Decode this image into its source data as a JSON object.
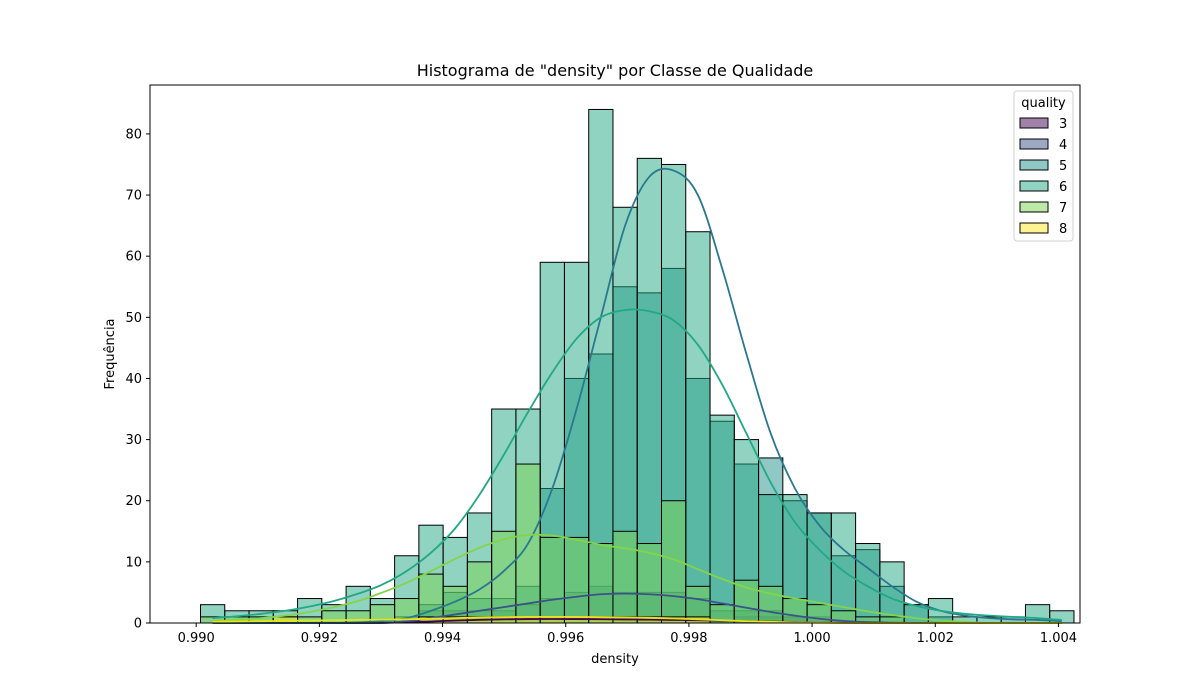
{
  "chart_data": {
    "type": "bar",
    "title": "Histograma de \"density\" por Classe de Qualidade",
    "xlabel": "density",
    "ylabel": "Frequência",
    "xlim": [
      0.98925,
      1.00435
    ],
    "ylim": [
      0,
      88
    ],
    "x_ticks": [
      "0.990",
      "0.992",
      "0.994",
      "0.996",
      "0.998",
      "1.000",
      "1.002",
      "1.004"
    ],
    "x_tick_values": [
      0.99,
      0.992,
      0.994,
      0.996,
      0.998,
      1.0,
      1.002,
      1.004
    ],
    "y_ticks": [
      "0",
      "10",
      "20",
      "30",
      "40",
      "50",
      "60",
      "70",
      "80"
    ],
    "y_tick_values": [
      0,
      10,
      20,
      30,
      40,
      50,
      60,
      70,
      80
    ],
    "bins": {
      "start": 0.99007,
      "width": 0.00039395,
      "count": 36
    },
    "legend": {
      "title": "quality",
      "placement": "top-right"
    },
    "series": [
      {
        "name": "3",
        "color": "#440154",
        "values": [
          0,
          0,
          0,
          0,
          0,
          0,
          0,
          0,
          0,
          0,
          0,
          0,
          0,
          1,
          1,
          0,
          0,
          1,
          1,
          1,
          1,
          0,
          1,
          1,
          1,
          0,
          0,
          0,
          0,
          0,
          0,
          0,
          0,
          0,
          0,
          0
        ],
        "kde": [
          0,
          0,
          0,
          0,
          0,
          0,
          0,
          0.02,
          0.1,
          0.25,
          0.4,
          0.52,
          0.6,
          0.64,
          0.65,
          0.64,
          0.62,
          0.58,
          0.55,
          0.5,
          0.45,
          0.38,
          0.3,
          0.22,
          0.15,
          0.08,
          0.03,
          0,
          0,
          0,
          0,
          0,
          0,
          0,
          0,
          0
        ]
      },
      {
        "name": "4",
        "color": "#3b528b",
        "values": [
          0,
          0,
          0,
          0,
          0,
          0,
          0,
          0,
          0,
          2,
          2,
          2,
          2,
          3,
          4,
          5,
          6,
          5,
          5,
          5,
          4,
          2,
          2,
          2,
          1,
          1,
          0,
          0,
          0,
          0,
          0,
          0,
          0,
          0,
          0,
          0
        ],
        "kde": [
          0,
          0,
          0,
          0,
          0,
          0,
          0,
          0,
          0.3,
          0.8,
          1.4,
          2.0,
          2.6,
          3.2,
          3.8,
          4.3,
          4.7,
          4.8,
          4.7,
          4.4,
          3.9,
          3.2,
          2.5,
          1.8,
          1.2,
          0.7,
          0.35,
          0.15,
          0.05,
          0,
          0,
          0,
          0,
          0,
          0,
          0
        ]
      },
      {
        "name": "5",
        "color": "#21918c",
        "values": [
          0,
          0,
          0,
          0,
          0,
          0,
          0,
          0,
          1,
          3,
          5,
          4,
          4,
          6,
          22,
          40,
          44,
          55,
          54,
          58,
          40,
          33,
          26,
          27,
          20,
          18,
          11,
          12,
          6,
          3,
          1,
          0,
          0,
          1,
          0,
          0
        ],
        "kde": [
          0,
          0,
          0,
          0,
          0,
          0,
          0.1,
          0.3,
          0.8,
          2,
          3.5,
          5.5,
          8.5,
          13,
          22,
          35,
          50,
          65,
          73,
          74,
          70,
          58,
          44,
          31,
          22,
          16,
          12,
          9,
          6,
          3.5,
          2,
          1.2,
          0.8,
          0.6,
          0.5,
          0.3
        ],
        "kde_color": "#2a788e"
      },
      {
        "name": "6",
        "color": "#21a883",
        "values": [
          3,
          2,
          2,
          2,
          4,
          3,
          6,
          4,
          11,
          16,
          14,
          18,
          35,
          35,
          59,
          59,
          84,
          68,
          76,
          75,
          64,
          34,
          30,
          21,
          21,
          18,
          18,
          13,
          10,
          3,
          4,
          1,
          1,
          0,
          3,
          2
        ],
        "kde": [
          0.8,
          1.1,
          1.5,
          2,
          2.7,
          3.6,
          4.8,
          6.3,
          8.5,
          11.5,
          15.5,
          21,
          27.5,
          34.5,
          41,
          46.5,
          50,
          51.2,
          51,
          49.5,
          45.5,
          39,
          31,
          23,
          16.5,
          12,
          8.5,
          6,
          4,
          2.8,
          2,
          1.5,
          1.2,
          1,
          0.8,
          0.5
        ],
        "kde_color": "#22a884"
      },
      {
        "name": "7",
        "color": "#7ad151",
        "values": [
          1,
          1,
          1,
          1,
          1,
          2,
          2,
          3,
          4,
          8,
          6,
          10,
          15,
          26,
          14,
          14,
          13,
          15,
          13,
          20,
          6,
          3,
          7,
          6,
          4,
          3,
          2,
          1,
          1,
          0,
          0,
          0,
          0,
          0,
          0,
          0
        ],
        "kde": [
          0.3,
          0.5,
          0.8,
          1.2,
          1.8,
          2.6,
          3.6,
          5,
          6.6,
          8.5,
          10.5,
          12.3,
          13.7,
          14.4,
          14.3,
          13.6,
          12.8,
          12.2,
          11.5,
          10.4,
          8.8,
          7.2,
          5.8,
          4.8,
          4,
          3.3,
          2.6,
          1.9,
          1.3,
          0.8,
          0.4,
          0.2,
          0,
          0,
          0,
          0
        ],
        "kde_color": "#84d44b"
      },
      {
        "name": "8",
        "color": "#fde725",
        "values": [
          0,
          0,
          0,
          1,
          0,
          0,
          0,
          0,
          0,
          1,
          1,
          1,
          1,
          1,
          1,
          1,
          1,
          1,
          1,
          1,
          1,
          0,
          0,
          0,
          0,
          0,
          0,
          0,
          0,
          0,
          0,
          0,
          0,
          0,
          0,
          0
        ],
        "kde": [
          0.2,
          0.25,
          0.3,
          0.35,
          0.4,
          0.45,
          0.5,
          0.55,
          0.6,
          0.7,
          0.8,
          0.9,
          0.95,
          1,
          1,
          1,
          0.95,
          0.9,
          0.85,
          0.75,
          0.6,
          0.45,
          0.3,
          0.2,
          0.1,
          0.05,
          0,
          0,
          0,
          0,
          0,
          0,
          0,
          0,
          0,
          0
        ],
        "kde_color": "#e8e419"
      }
    ]
  }
}
